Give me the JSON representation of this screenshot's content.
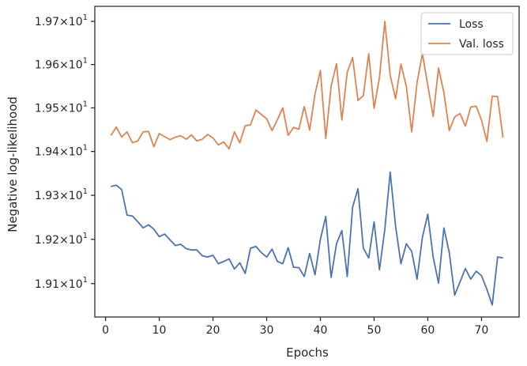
{
  "chart_data": {
    "type": "line",
    "xlabel": "Epochs",
    "ylabel": "Negative log-likelihood",
    "xlim": [
      -2,
      77
    ],
    "ylim": [
      19.025,
      19.735
    ],
    "y_scale": "log",
    "grid": false,
    "legend_position": "top-right",
    "x_ticks": [
      0,
      10,
      20,
      30,
      40,
      50,
      60,
      70
    ],
    "x_tick_labels": [
      "0",
      "10",
      "20",
      "30",
      "40",
      "50",
      "60",
      "70"
    ],
    "y_ticks": [
      19.1,
      19.2,
      19.3,
      19.4,
      19.5,
      19.6,
      19.7
    ],
    "y_tick_mantissas": [
      "1.91",
      "1.92",
      "1.93",
      "1.94",
      "1.95",
      "1.96",
      "1.97"
    ],
    "y_tick_times": "×",
    "y_tick_base": "10",
    "y_tick_exponent": "1",
    "x": [
      1,
      2,
      3,
      4,
      5,
      6,
      7,
      8,
      9,
      10,
      11,
      12,
      13,
      14,
      15,
      16,
      17,
      18,
      19,
      20,
      21,
      22,
      23,
      24,
      25,
      26,
      27,
      28,
      29,
      30,
      31,
      32,
      33,
      34,
      35,
      36,
      37,
      38,
      39,
      40,
      41,
      42,
      43,
      44,
      45,
      46,
      47,
      48,
      49,
      50,
      51,
      52,
      53,
      54,
      55,
      56,
      57,
      58,
      59,
      60,
      61,
      62,
      63,
      64,
      65,
      66,
      67,
      68,
      69,
      70,
      71,
      72,
      73,
      74
    ],
    "series": [
      {
        "name": "Loss",
        "color": "#4c72b0",
        "values": [
          19.32,
          19.323,
          19.313,
          19.255,
          19.253,
          19.24,
          19.226,
          19.233,
          19.223,
          19.206,
          19.212,
          19.199,
          19.186,
          19.189,
          19.179,
          19.176,
          19.176,
          19.163,
          19.16,
          19.164,
          19.145,
          19.15,
          19.156,
          19.133,
          19.147,
          19.123,
          19.18,
          19.184,
          19.17,
          19.16,
          19.178,
          19.15,
          19.145,
          19.181,
          19.137,
          19.136,
          19.116,
          19.168,
          19.12,
          19.2,
          19.252,
          19.114,
          19.19,
          19.22,
          19.116,
          19.273,
          19.315,
          19.18,
          19.158,
          19.24,
          19.131,
          19.223,
          19.353,
          19.23,
          19.145,
          19.19,
          19.173,
          19.11,
          19.205,
          19.257,
          19.16,
          19.101,
          19.226,
          19.17,
          19.074,
          19.104,
          19.134,
          19.11,
          19.128,
          19.118,
          19.087,
          19.052,
          19.16,
          19.158
        ]
      },
      {
        "name": "Val. loss",
        "color": "#dd8452",
        "values": [
          19.437,
          19.456,
          19.433,
          19.445,
          19.42,
          19.424,
          19.445,
          19.446,
          19.411,
          19.441,
          19.434,
          19.427,
          19.433,
          19.436,
          19.428,
          19.438,
          19.424,
          19.428,
          19.439,
          19.431,
          19.415,
          19.422,
          19.406,
          19.445,
          19.42,
          19.459,
          19.461,
          19.495,
          19.485,
          19.475,
          19.448,
          19.473,
          19.5,
          19.437,
          19.455,
          19.451,
          19.503,
          19.449,
          19.532,
          19.586,
          19.43,
          19.55,
          19.602,
          19.472,
          19.582,
          19.616,
          19.517,
          19.528,
          19.625,
          19.499,
          19.57,
          19.7,
          19.575,
          19.521,
          19.601,
          19.55,
          19.445,
          19.558,
          19.625,
          19.552,
          19.48,
          19.592,
          19.535,
          19.448,
          19.479,
          19.487,
          19.458,
          19.502,
          19.504,
          19.472,
          19.423,
          19.527,
          19.526,
          19.432
        ]
      }
    ]
  }
}
